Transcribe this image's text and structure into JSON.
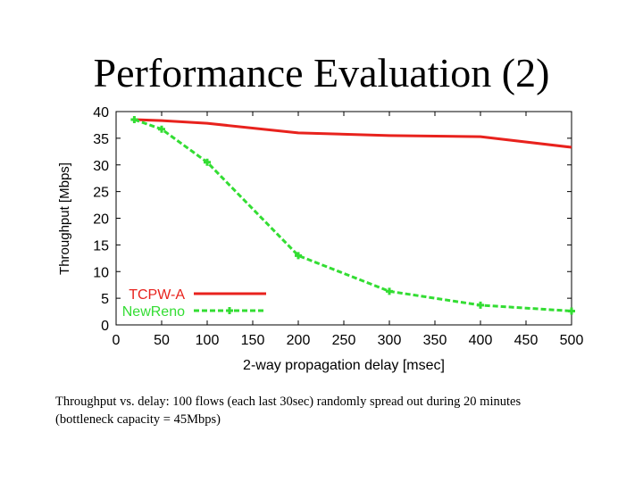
{
  "slide": {
    "title": "Performance Evaluation (2)",
    "caption_line1": "Throughput vs. delay:  100 flows (each last 30sec)  randomly spread out during 20 minutes",
    "caption_line2": "(bottleneck capacity = 45Mbps)"
  },
  "chart_data": {
    "type": "line",
    "title": "",
    "xlabel": "2-way propagation delay [msec]",
    "ylabel": "Throughput [Mbps]",
    "xlim": [
      0,
      500
    ],
    "ylim": [
      0,
      40
    ],
    "xticks": [
      0,
      50,
      100,
      150,
      200,
      250,
      300,
      350,
      400,
      450,
      500
    ],
    "yticks": [
      0,
      5,
      10,
      15,
      20,
      25,
      30,
      35,
      40
    ],
    "xtick_labels": [
      "0",
      "50",
      "100",
      "150",
      "200",
      "250",
      "300",
      "350",
      "400",
      "450",
      "500"
    ],
    "ytick_labels": [
      "0",
      "5",
      "10",
      "15",
      "20",
      "25",
      "30",
      "35",
      "40"
    ],
    "legend_position": "bottom-left",
    "series": [
      {
        "name": "TCPW-A",
        "color": "#e8221d",
        "style": "solid",
        "marker": false,
        "x": [
          20,
          50,
          100,
          200,
          300,
          400,
          500
        ],
        "values": [
          38.5,
          38.3,
          37.8,
          36.0,
          35.5,
          35.3,
          33.3
        ]
      },
      {
        "name": "NewReno",
        "color": "#33dd33",
        "style": "dashed",
        "marker": true,
        "x": [
          20,
          50,
          100,
          200,
          300,
          400,
          500
        ],
        "values": [
          38.5,
          36.7,
          30.5,
          13.0,
          6.3,
          3.7,
          2.6
        ]
      }
    ]
  }
}
